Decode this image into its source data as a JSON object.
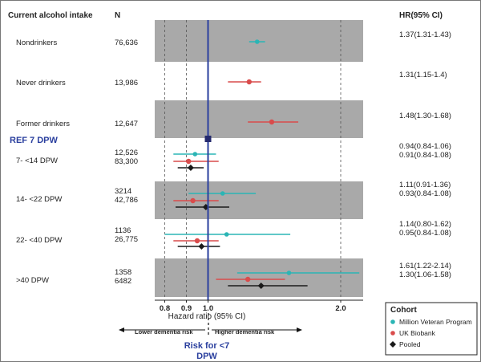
{
  "chart_data": {
    "type": "forest",
    "header": {
      "category": "Current alcohol intake",
      "n": "N",
      "hr": "HR(95% CI)"
    },
    "reference_label": "REF 7 DPW",
    "reference_value": 1.0,
    "xlabel": "Hazard ratio (95% CI)",
    "x_ticks": [
      0.8,
      0.9,
      1.0,
      2.0
    ],
    "tick_labels": [
      "0.8",
      "0.9",
      "1.0",
      "2.0"
    ],
    "axis_direction": {
      "left": "Lower dementia risk",
      "right": "Higher dementia risk"
    },
    "risk_label_line1": "Risk for <7",
    "risk_label_line2": "DPW",
    "colors": {
      "Million Veteran Program": "#2bb5b5",
      "UK Biobank": "#d94c4c",
      "Pooled": "#1a1a1a",
      "reference_line": "#2a3f9e",
      "band": "#a9a9a9"
    },
    "legend": {
      "title": "Cohort",
      "entries": [
        "Million Veteran Program",
        "UK Biobank",
        "Pooled"
      ]
    },
    "groups": [
      {
        "label": "Nondrinkers",
        "shaded": true,
        "rows": [
          {
            "series": "Million Veteran Program",
            "n": "76,636",
            "hr": 1.37,
            "lo": 1.31,
            "hi": 1.43,
            "text": "1.37(1.31-1.43)"
          }
        ]
      },
      {
        "label": "Never drinkers",
        "shaded": false,
        "rows": [
          {
            "series": "UK Biobank",
            "n": "13,986",
            "hr": 1.31,
            "lo": 1.15,
            "hi": 1.4,
            "text": "1.31(1.15-1.4)"
          }
        ]
      },
      {
        "label": "Former drinkers",
        "shaded": true,
        "rows": [
          {
            "series": "UK Biobank",
            "n": "12,647",
            "hr": 1.48,
            "lo": 1.3,
            "hi": 1.68,
            "text": "1.48(1.30-1.68)"
          }
        ]
      },
      {
        "label": "7- <14 DPW",
        "shaded": false,
        "rows": [
          {
            "series": "Million Veteran Program",
            "n": "12,526",
            "hr": 0.94,
            "lo": 0.84,
            "hi": 1.06,
            "text": "0.94(0.84-1.06)"
          },
          {
            "series": "UK Biobank",
            "n": "83,300",
            "hr": 0.91,
            "lo": 0.84,
            "hi": 1.08,
            "text": "0.91(0.84-1.08)"
          },
          {
            "series": "Pooled",
            "n": "",
            "hr": 0.92,
            "lo": 0.86,
            "hi": 0.98,
            "text": ""
          }
        ]
      },
      {
        "label": "14- <22 DPW",
        "shaded": true,
        "rows": [
          {
            "series": "Million Veteran Program",
            "n": "3214",
            "hr": 1.11,
            "lo": 0.91,
            "hi": 1.36,
            "text": "1.11(0.91-1.36)"
          },
          {
            "series": "UK Biobank",
            "n": "42,786",
            "hr": 0.93,
            "lo": 0.84,
            "hi": 1.08,
            "text": "0.93(0.84-1.08)"
          },
          {
            "series": "Pooled",
            "n": "",
            "hr": 0.99,
            "lo": 0.85,
            "hi": 1.16,
            "text": ""
          }
        ]
      },
      {
        "label": "22- <40 DPW",
        "shaded": false,
        "rows": [
          {
            "series": "Million Veteran Program",
            "n": "1136",
            "hr": 1.14,
            "lo": 0.8,
            "hi": 1.62,
            "text": "1.14(0.80-1.62)"
          },
          {
            "series": "UK Biobank",
            "n": "26,775",
            "hr": 0.95,
            "lo": 0.84,
            "hi": 1.08,
            "text": "0.95(0.84-1.08)"
          },
          {
            "series": "Pooled",
            "n": "",
            "hr": 0.97,
            "lo": 0.86,
            "hi": 1.09,
            "text": ""
          }
        ]
      },
      {
        "label": ">40 DPW",
        "shaded": true,
        "rows": [
          {
            "series": "Million Veteran Program",
            "n": "1358",
            "hr": 1.61,
            "lo": 1.22,
            "hi": 2.14,
            "text": "1.61(1.22-2.14)"
          },
          {
            "series": "UK Biobank",
            "n": "6482",
            "hr": 1.3,
            "lo": 1.06,
            "hi": 1.58,
            "text": "1.30(1.06-1.58)"
          },
          {
            "series": "Pooled",
            "n": "",
            "hr": 1.4,
            "lo": 1.15,
            "hi": 1.75,
            "text": ""
          }
        ]
      }
    ]
  }
}
